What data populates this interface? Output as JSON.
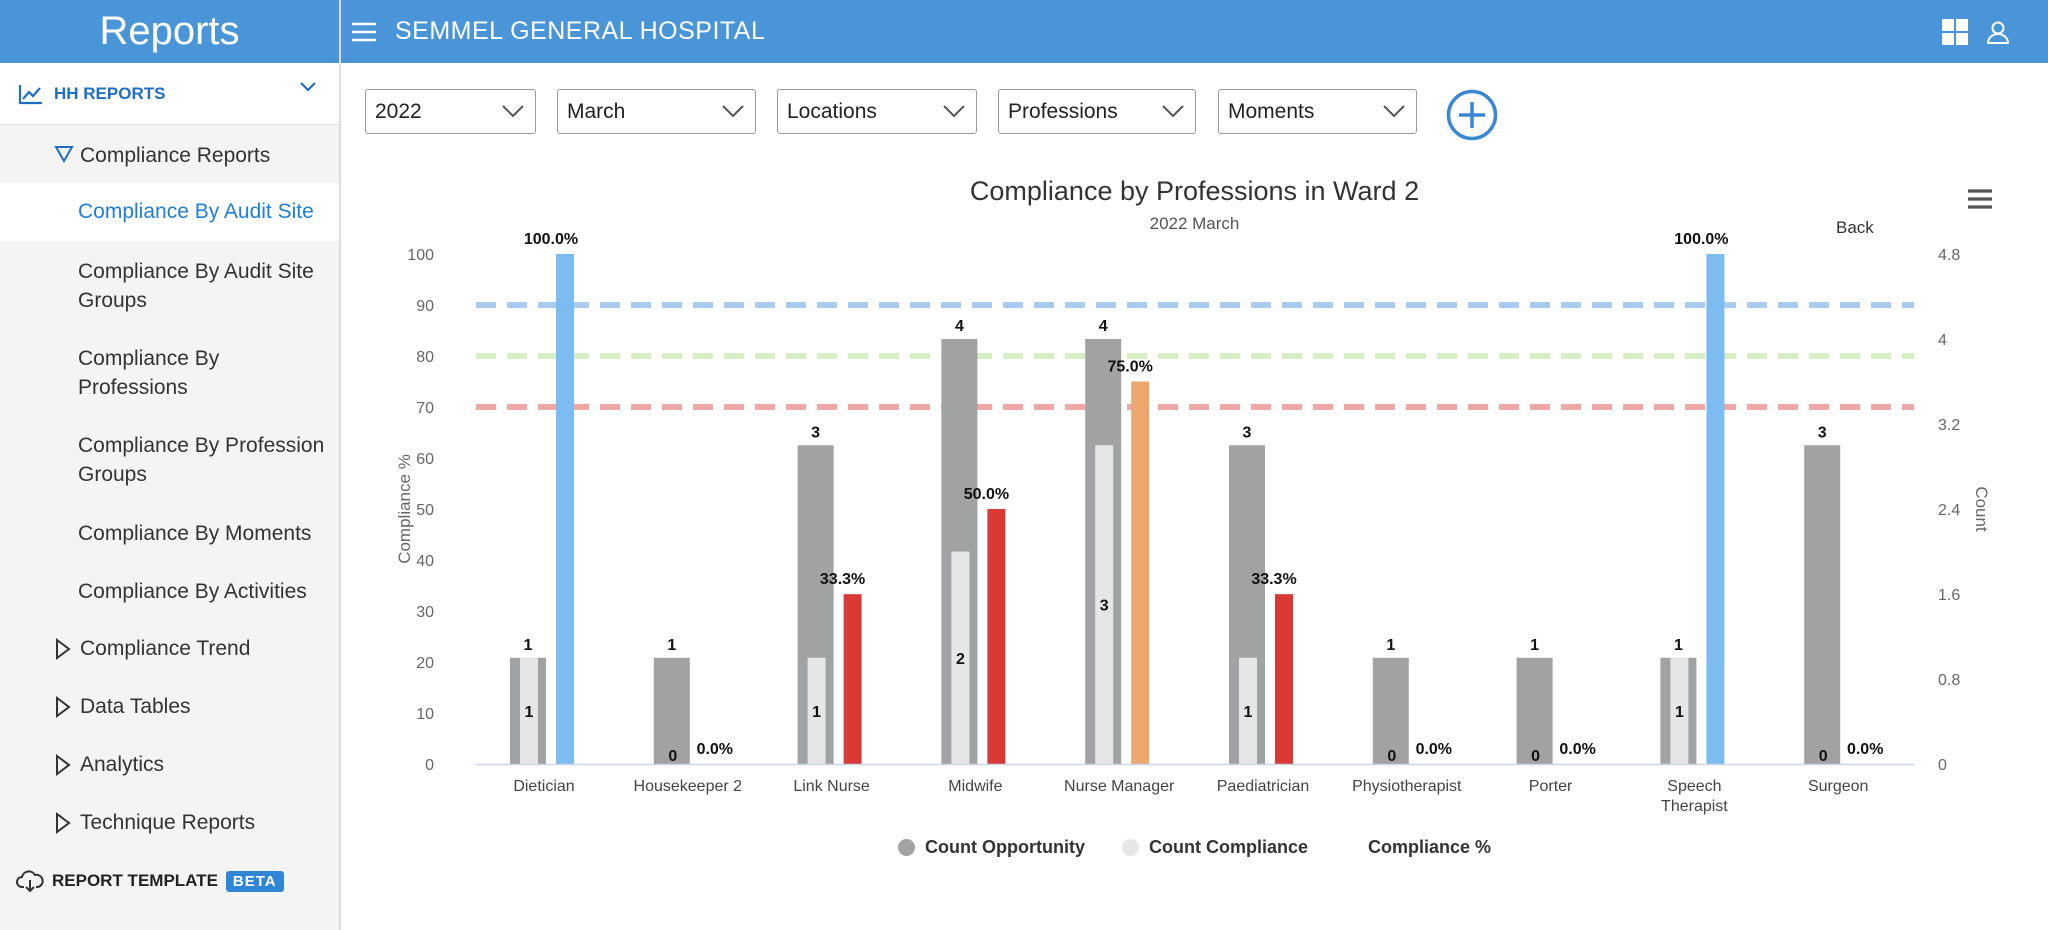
{
  "sidebar": {
    "header": "Reports",
    "section": "HH REPORTS",
    "group": "Compliance Reports",
    "items": [
      {
        "label": "Compliance By Audit Site"
      },
      {
        "label1": "Compliance By Audit Site",
        "label2": "Groups"
      },
      {
        "label1": "Compliance By",
        "label2": "Professions"
      },
      {
        "label1": "Compliance By Profession",
        "label2": "Groups"
      },
      {
        "label": "Compliance By Moments"
      },
      {
        "label": "Compliance By Activities"
      }
    ],
    "top_items": [
      "Compliance Trend",
      "Data Tables",
      "Analytics",
      "Technique Reports"
    ],
    "footer": "REPORT TEMPLATE",
    "badge": "BETA"
  },
  "topbar": {
    "title": "SEMMEL GENERAL HOSPITAL"
  },
  "filters": {
    "year": "2022",
    "month": "March",
    "locations": "Locations",
    "professions": "Professions",
    "moments": "Moments"
  },
  "chart": {
    "back_label": "Back",
    "legend": [
      "Count Opportunity",
      "Count Compliance",
      "Compliance %"
    ]
  },
  "chart_data": {
    "type": "bar",
    "title": "Compliance by Professions in Ward 2",
    "subtitle": "2022 March",
    "ylabel": "Compliance %",
    "y2label": "Count",
    "ylim": [
      0,
      100
    ],
    "y2lim": [
      0,
      4.8
    ],
    "yticks": [
      "0",
      "10",
      "20",
      "30",
      "40",
      "50",
      "60",
      "70",
      "80",
      "90",
      "100"
    ],
    "y2ticks": [
      "0",
      "0.8",
      "1.6",
      "2.4",
      "3.2",
      "4",
      "4.8"
    ],
    "categories": [
      "Dietician",
      "Housekeeper 2",
      "Link Nurse",
      "Midwife",
      "Nurse Manager",
      "Paediatrician",
      "Physiotherapist",
      "Porter",
      "Speech Therapist",
      "Surgeon"
    ],
    "category_lines": [
      [
        "Dietician"
      ],
      [
        "Housekeeper 2"
      ],
      [
        "Link Nurse"
      ],
      [
        "Midwife"
      ],
      [
        "Nurse Manager"
      ],
      [
        "Paediatrician"
      ],
      [
        "Physiotherapist"
      ],
      [
        "Porter"
      ],
      [
        "Speech",
        "Therapist"
      ],
      [
        "Surgeon"
      ]
    ],
    "series": [
      {
        "name": "Count Opportunity",
        "axis": "count",
        "values": [
          1,
          1,
          3,
          4,
          4,
          3,
          1,
          1,
          1,
          3
        ]
      },
      {
        "name": "Count Compliance",
        "axis": "count",
        "values": [
          1,
          0,
          1,
          2,
          3,
          1,
          0,
          0,
          1,
          0
        ]
      },
      {
        "name": "Compliance %",
        "axis": "percent",
        "values": [
          100,
          0,
          33.3,
          50,
          75,
          33.3,
          0,
          0,
          100,
          0
        ],
        "labels": [
          "100.0%",
          "0.0%",
          "33.3%",
          "50.0%",
          "75.0%",
          "33.3%",
          "0.0%",
          "0.0%",
          "100.0%",
          "0.0%"
        ],
        "colors": [
          "#7cbcf0",
          "#7cbcf0",
          "#d93a35",
          "#d93a35",
          "#eea66f",
          "#d93a35",
          "#7cbcf0",
          "#7cbcf0",
          "#7cbcf0",
          "#7cbcf0"
        ]
      }
    ],
    "reference_lines": [
      {
        "value": 90,
        "color": "#a9cbef"
      },
      {
        "value": 80,
        "color": "#d6efc4"
      },
      {
        "value": 70,
        "color": "#eea9a6"
      }
    ],
    "colors": {
      "opportunity": "#a0a2a3",
      "compliance": "#e6e6e6",
      "axis": "#ccd6eb"
    }
  }
}
